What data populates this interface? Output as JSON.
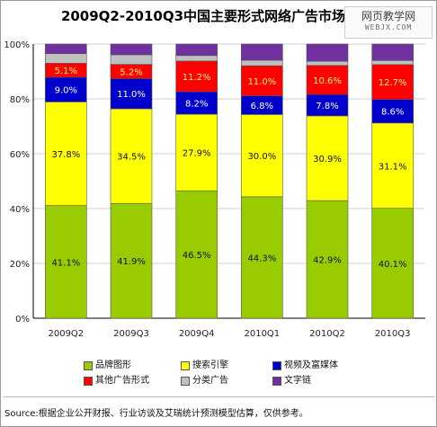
{
  "chart_data": {
    "type": "bar",
    "stacked": true,
    "title": "2009Q2-2010Q3中国主要形式网络广告市场份额",
    "categories": [
      "2009Q2",
      "2009Q3",
      "2009Q4",
      "2010Q1",
      "2010Q2",
      "2010Q3"
    ],
    "y_ticks": [
      "0%",
      "20%",
      "40%",
      "60%",
      "80%",
      "100%"
    ],
    "ylim": [
      0,
      100
    ],
    "legend_position": "bottom",
    "series": [
      {
        "name": "品牌图形",
        "color": "#99cc00",
        "values": [
          41.1,
          41.9,
          46.5,
          44.3,
          42.9,
          40.1
        ],
        "labels": [
          "41.1%",
          "41.9%",
          "46.5%",
          "44.3%",
          "42.9%",
          "40.1%"
        ]
      },
      {
        "name": "搜索引擎",
        "color": "#ffff00",
        "values": [
          37.8,
          34.5,
          27.9,
          30.0,
          30.9,
          31.1
        ],
        "labels": [
          "37.8%",
          "34.5%",
          "27.9%",
          "30.0%",
          "30.9%",
          "31.1%"
        ]
      },
      {
        "name": "视频及富媒体",
        "color": "#0000cc",
        "values": [
          9.0,
          11.0,
          8.2,
          6.8,
          7.8,
          8.6
        ],
        "labels": [
          "9.0%",
          "11.0%",
          "8.2%",
          "6.8%",
          "7.8%",
          "8.6%"
        ]
      },
      {
        "name": "其他广告形式",
        "color": "#ff0000",
        "values": [
          5.1,
          5.2,
          11.2,
          11.0,
          10.6,
          12.7
        ],
        "labels": [
          "5.1%",
          "5.2%",
          "11.2%",
          "11.0%",
          "10.6%",
          "12.7%"
        ]
      },
      {
        "name": "分类广告",
        "color": "#c0c0c0",
        "values": [
          3.5,
          3.5,
          2.0,
          2.0,
          1.5,
          1.5
        ],
        "labels": [
          "",
          "",
          "",
          "",
          "",
          ""
        ]
      },
      {
        "name": "文字链",
        "color": "#7030a0",
        "values": [
          3.5,
          3.9,
          4.2,
          5.9,
          6.3,
          6.0
        ],
        "labels": [
          "",
          "",
          "",
          "",
          "",
          ""
        ]
      }
    ]
  },
  "watermark": {
    "line1": "网页教学网",
    "line2": "WEBJX.COM"
  },
  "source": "Source:根据企业公开财报、行业访谈及艾瑞统计预测模型估算，仅供参考。"
}
